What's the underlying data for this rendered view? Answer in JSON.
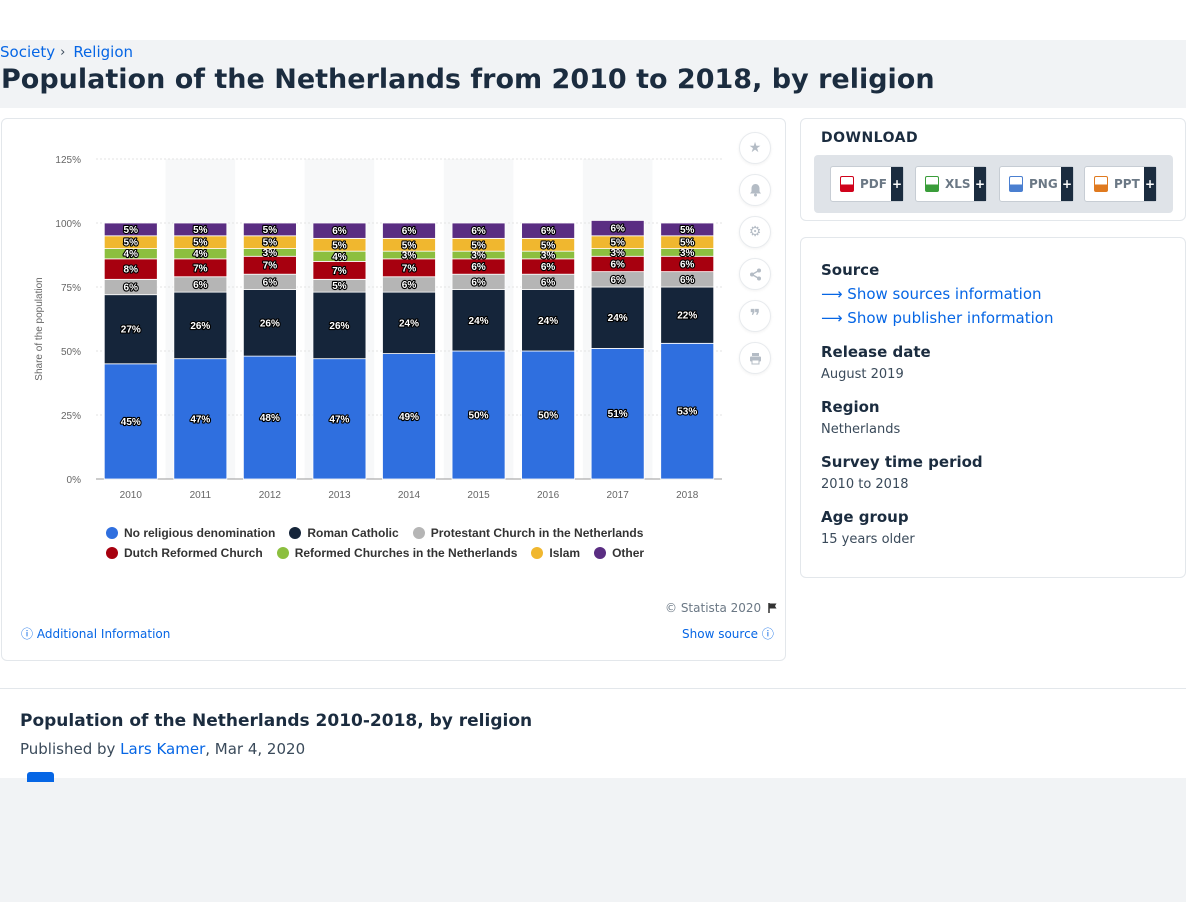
{
  "breadcrumb": {
    "items": [
      "Society",
      "Religion"
    ],
    "separator": "›"
  },
  "page": {
    "title": "Population of the Netherlands from 2010 to 2018, by religion"
  },
  "chart_data": {
    "type": "bar",
    "stacked": true,
    "title": "",
    "xlabel": "",
    "ylabel": "Share of the population",
    "ylim": [
      0,
      125
    ],
    "yticks": [
      "0%",
      "25%",
      "50%",
      "75%",
      "100%",
      "125%"
    ],
    "grid": true,
    "legend_position": "bottom",
    "categories": [
      "2010",
      "2011",
      "2012",
      "2013",
      "2014",
      "2015",
      "2016",
      "2017",
      "2018"
    ],
    "series": [
      {
        "name": "No religious denomination",
        "color": "#2f6fdf",
        "values": [
          45,
          47,
          48,
          47,
          49,
          50,
          50,
          51,
          53
        ]
      },
      {
        "name": "Roman Catholic",
        "color": "#15253a",
        "values": [
          27,
          26,
          26,
          26,
          24,
          24,
          24,
          24,
          22
        ]
      },
      {
        "name": "Protestant Church in the Netherlands",
        "color": "#b5b5b5",
        "values": [
          6,
          6,
          6,
          5,
          6,
          6,
          6,
          6,
          6
        ]
      },
      {
        "name": "Dutch Reformed Church",
        "color": "#a7000f",
        "values": [
          8,
          7,
          7,
          7,
          7,
          6,
          6,
          6,
          6
        ]
      },
      {
        "name": "Reformed Churches in the Netherlands",
        "color": "#8cbf3f",
        "values": [
          4,
          4,
          3,
          4,
          3,
          3,
          3,
          3,
          3
        ]
      },
      {
        "name": "Islam",
        "color": "#f0b72f",
        "values": [
          5,
          5,
          5,
          5,
          5,
          5,
          5,
          5,
          5
        ]
      },
      {
        "name": "Other",
        "color": "#5a2d82",
        "values": [
          5,
          5,
          5,
          6,
          6,
          6,
          6,
          6,
          5
        ]
      }
    ]
  },
  "chart_footer": {
    "copyright": "© Statista 2020",
    "additional_info": "Additional Information",
    "show_source": "Show source"
  },
  "download": {
    "title": "DOWNLOAD",
    "buttons": [
      {
        "label": "PDF",
        "plus": "+",
        "color": "#d0021b"
      },
      {
        "label": "XLS",
        "plus": "+",
        "color": "#3a9d3a"
      },
      {
        "label": "PNG",
        "plus": "+",
        "color": "#4a7fd0"
      },
      {
        "label": "PPT",
        "plus": "+",
        "color": "#e07a1f"
      }
    ]
  },
  "meta": {
    "source_label": "Source",
    "show_sources": "Show sources information",
    "show_publisher": "Show publisher information",
    "release_label": "Release date",
    "release_value": "August 2019",
    "region_label": "Region",
    "region_value": "Netherlands",
    "survey_label": "Survey time period",
    "survey_value": "2010 to 2018",
    "age_label": "Age group",
    "age_value": "15 years older"
  },
  "publication": {
    "title": "Population of the Netherlands 2010-2018, by religion",
    "published_by": "Published by",
    "author": "Lars Kamer",
    "date": ", Mar 4, 2020"
  },
  "icons": [
    "star-icon",
    "bell-icon",
    "gear-icon",
    "share-icon",
    "quote-icon",
    "print-icon",
    "flag-icon",
    "info-icon",
    "arrow-right-icon"
  ]
}
